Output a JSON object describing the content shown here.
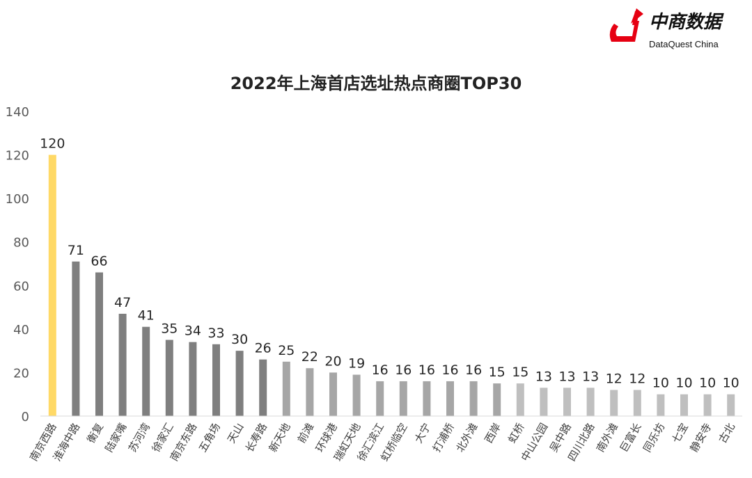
{
  "logo": {
    "cn": "中商数据",
    "en": "DataQuest China",
    "color": "#e60012"
  },
  "chart_data": {
    "type": "bar",
    "title": "2022年上海首店选址热点商圈TOP30",
    "xlabel": "",
    "ylabel": "",
    "ylim": [
      0,
      140
    ],
    "yticks": [
      0,
      20,
      40,
      60,
      80,
      100,
      120,
      140
    ],
    "grid": false,
    "categories": [
      "南京西路",
      "淮海中路",
      "衡复",
      "陆家嘴",
      "苏河湾",
      "徐家汇",
      "南京东路",
      "五角场",
      "天山",
      "长寿路",
      "新天地",
      "前滩",
      "环球港",
      "瑞虹天地",
      "徐汇滨江",
      "虹桥临空",
      "大宁",
      "打浦桥",
      "北外滩",
      "西岸",
      "虹桥",
      "中山公园",
      "吴中路",
      "四川北路",
      "南外滩",
      "巨富长",
      "同乐坊",
      "七宝",
      "静安寺",
      "古北"
    ],
    "values": [
      120,
      71,
      66,
      47,
      41,
      35,
      34,
      33,
      30,
      26,
      25,
      22,
      20,
      19,
      16,
      16,
      16,
      16,
      16,
      15,
      15,
      13,
      13,
      13,
      12,
      12,
      10,
      10,
      10,
      10
    ],
    "colors": {
      "top1": "#ffd966",
      "rank2_10": "#7f7f7f",
      "rank11_20": "#a6a6a6",
      "rank21_30": "#bfbfbf"
    }
  }
}
